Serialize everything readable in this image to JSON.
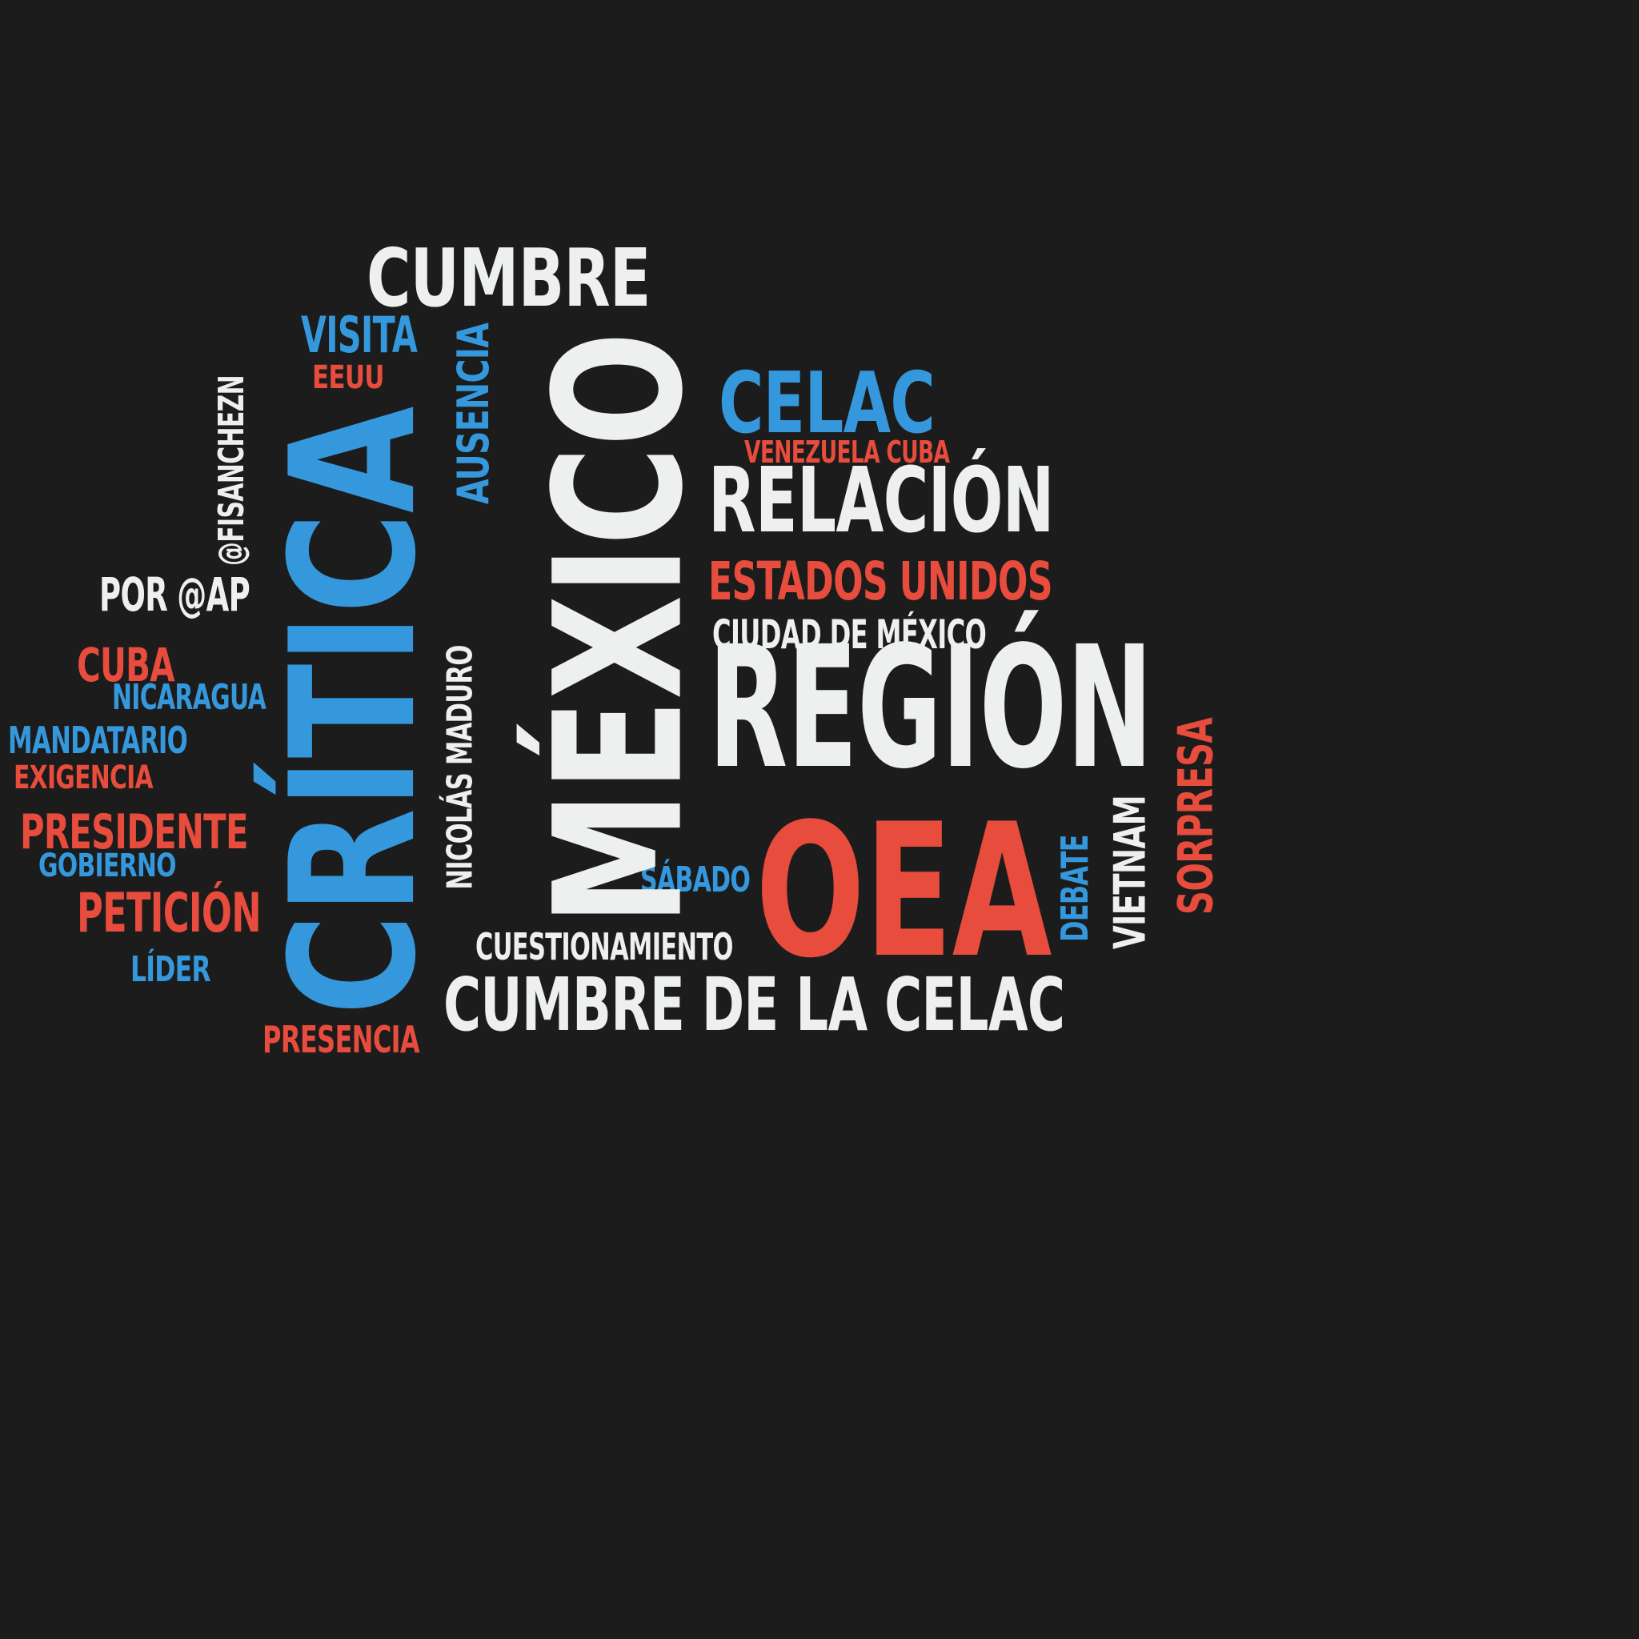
{
  "palette": {
    "background": "#1c1c1c",
    "white": "#eef0f0",
    "blue": "#3598dc",
    "red": "#e74c3c"
  },
  "words": {
    "mexico": "MÉXICO",
    "critica": "CRÍTICA",
    "oea": "OEA",
    "region": "REGIÓN",
    "cumbre": "CUMBRE",
    "cumbre_celac": "CUMBRE DE LA CELAC",
    "celac": "CELAC",
    "relacion": "RELACIÓN",
    "estados_unidos": "ESTADOS UNIDOS",
    "ciudad_mexico": "CIUDAD DE MÉXICO",
    "venezuela_cuba": "VENEZUELA CUBA",
    "visita": "VISITA",
    "eeuu": "EEUU",
    "ausencia": "AUSENCIA",
    "fisanchezn": "@FISANCHEZN",
    "por_ap": "POR @AP",
    "cuba": "CUBA",
    "nicaragua": "NICARAGUA",
    "mandatario": "MANDATARIO",
    "exigencia": "EXIGENCIA",
    "presidente": "PRESIDENTE",
    "gobierno": "GOBIERNO",
    "peticion": "PETICIÓN",
    "lider": "LÍDER",
    "presencia": "PRESENCIA",
    "nicolas_maduro": "NICOLÁS MADURO",
    "sabado": "SÁBADO",
    "cuestionamiento": "CUESTIONAMIENTO",
    "debate": "DEBATE",
    "vietnam": "VIETNAM",
    "sorpresa": "SORPRESA"
  }
}
